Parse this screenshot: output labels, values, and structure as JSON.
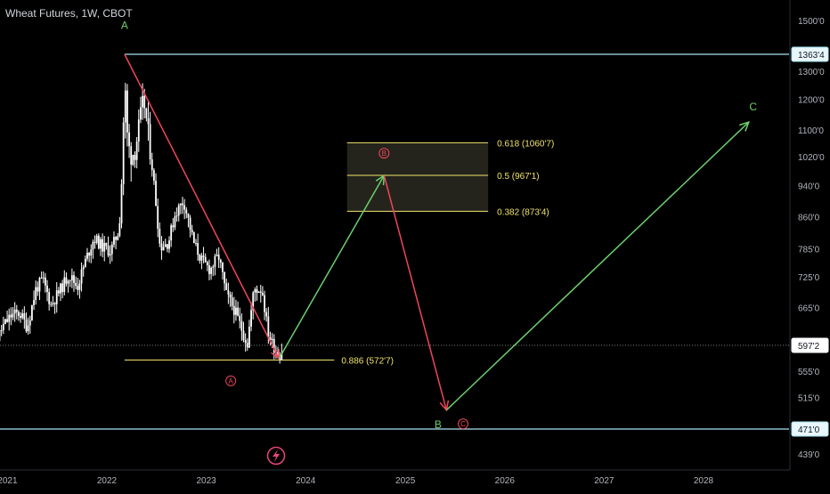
{
  "header": {
    "symbol_title": "Wheat Futures, 1W, CBOT"
  },
  "colors": {
    "background": "#000000",
    "candle": "#ffffff",
    "axis_text": "#b2b5be",
    "price_line": "#a6e3f2",
    "fib": "#f2e36b",
    "wave_green": "#6ccf6c",
    "wave_red": "#f0455a",
    "fib_zone": "#2a2a22",
    "current_price": "#787b86"
  },
  "chart_data": {
    "type": "candlestick",
    "x_axis": {
      "type": "date",
      "range": [
        "2020-10-15",
        "2028-10-01"
      ],
      "tick_labels": [
        "2021",
        "2022",
        "2023",
        "2024",
        "2025",
        "2026",
        "2027",
        "2028"
      ]
    },
    "y_axis": {
      "scale": "log",
      "range": [
        415,
        1600
      ],
      "tick_labels": [
        "1500'0",
        "1300'0",
        "1200'0",
        "1100'0",
        "1020'0",
        "940'0",
        "860'0",
        "785'0",
        "725'0",
        "665'0",
        "555'0",
        "515'0",
        "439'0"
      ]
    },
    "price_labels": [
      {
        "label": "1363'4",
        "value": 1363.5,
        "kind": "level"
      },
      {
        "label": "597'2",
        "value": 597.25,
        "kind": "current"
      },
      {
        "label": "471'0",
        "value": 471.0,
        "kind": "level"
      }
    ],
    "horizontal_levels": [
      {
        "value": 1363.5,
        "start": "2022-03-07",
        "end": "2028-10-01"
      },
      {
        "value": 471.0,
        "start": "2020-10-15",
        "end": "2028-10-01"
      }
    ],
    "fibonacci": {
      "retracement": [
        {
          "label": "0.618 (1060'7)",
          "value": 1060.875
        },
        {
          "label": "0.5 (967'1)",
          "value": 967.125
        },
        {
          "label": "0.382 (873'4)",
          "value": 873.5
        }
      ],
      "extension": {
        "label": "0.886 (572'7)",
        "value": 572.875,
        "start": "2022-03-07",
        "end": "2024-04-15"
      },
      "zone_start": "2024-06-01",
      "zone_end": "2025-11-01"
    },
    "wave_lines": [
      {
        "color": "red",
        "from": [
          "2022-03-07",
          1363.5
        ],
        "to": [
          "2023-09-25",
          575
        ]
      },
      {
        "color": "green",
        "from": [
          "2023-09-25",
          575
        ],
        "to": [
          "2024-10-15",
          967
        ]
      },
      {
        "color": "red",
        "from": [
          "2024-10-15",
          967
        ],
        "to": [
          "2025-06-01",
          497
        ]
      },
      {
        "color": "green",
        "from": [
          "2025-06-01",
          497
        ],
        "to": [
          "2028-06-15",
          1125
        ]
      }
    ],
    "wave_labels": [
      {
        "text": "A",
        "color": "green",
        "circled": false,
        "x": "2022-03-07",
        "y": 1480
      },
      {
        "text": "A",
        "color": "red",
        "circled": true,
        "x": "2023-04-01",
        "y": 540
      },
      {
        "text": "B",
        "color": "red",
        "circled": true,
        "x": "2024-10-15",
        "y": 1030
      },
      {
        "text": "B",
        "color": "green",
        "circled": false,
        "x": "2025-05-01",
        "y": 477
      },
      {
        "text": "C",
        "color": "red",
        "circled": true,
        "x": "2025-08-01",
        "y": 478
      },
      {
        "text": "C",
        "color": "green",
        "circled": false,
        "x": "2028-07-01",
        "y": 1175
      }
    ],
    "close_path": [
      [
        "2020-10-15",
        612
      ],
      [
        "2020-11-15",
        598
      ],
      [
        "2020-12-15",
        630
      ],
      [
        "2021-01-15",
        650
      ],
      [
        "2021-02-15",
        655
      ],
      [
        "2021-03-15",
        628
      ],
      [
        "2021-04-15",
        700
      ],
      [
        "2021-05-10",
        720
      ],
      [
        "2021-06-10",
        670
      ],
      [
        "2021-07-15",
        700
      ],
      [
        "2021-08-15",
        730
      ],
      [
        "2021-09-15",
        705
      ],
      [
        "2021-10-15",
        760
      ],
      [
        "2021-11-15",
        810
      ],
      [
        "2021-12-15",
        790
      ],
      [
        "2022-01-15",
        780
      ],
      [
        "2022-02-15",
        830
      ],
      [
        "2022-02-28",
        1000
      ],
      [
        "2022-03-07",
        1300
      ],
      [
        "2022-03-14",
        1100
      ],
      [
        "2022-03-28",
        1020
      ],
      [
        "2022-04-15",
        1040
      ],
      [
        "2022-05-16",
        1200
      ],
      [
        "2022-06-15",
        1000
      ],
      [
        "2022-07-15",
        790
      ],
      [
        "2022-08-15",
        800
      ],
      [
        "2022-09-10",
        870
      ],
      [
        "2022-10-10",
        900
      ],
      [
        "2022-11-15",
        800
      ],
      [
        "2022-12-15",
        760
      ],
      [
        "2023-01-15",
        740
      ],
      [
        "2023-02-15",
        770
      ],
      [
        "2023-03-15",
        690
      ],
      [
        "2023-04-15",
        660
      ],
      [
        "2023-05-15",
        620
      ],
      [
        "2023-06-01",
        600
      ],
      [
        "2023-06-25",
        700
      ],
      [
        "2023-07-25",
        700
      ],
      [
        "2023-08-15",
        620
      ],
      [
        "2023-09-01",
        600
      ],
      [
        "2023-09-25",
        580
      ],
      [
        "2023-10-10",
        592
      ]
    ],
    "current_price": 597.25
  }
}
